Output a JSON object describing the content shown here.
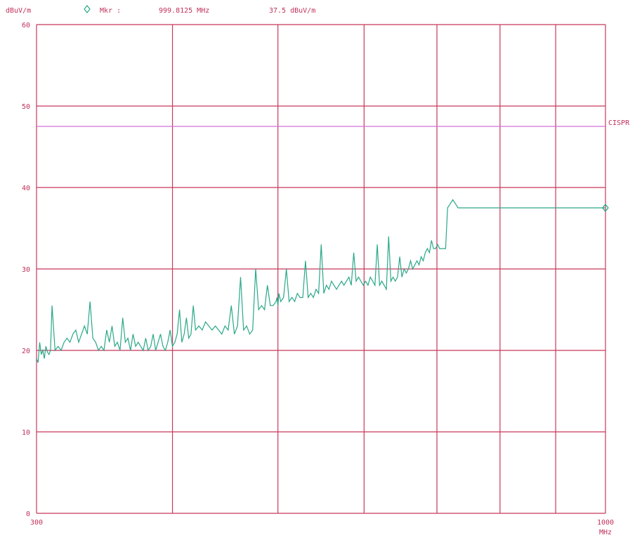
{
  "header": {
    "unit": "dBuV/m",
    "marker_label": "Mkr :",
    "marker_freq": "999.8125 MHz",
    "marker_level": "37.5 dBuV/m"
  },
  "limit_line": {
    "label": "CISPR",
    "value": 47.5,
    "color": "#d070d8"
  },
  "colors": {
    "grid": "#c8385a",
    "trace": "#2aa888",
    "text": "#c0305a"
  },
  "chart_data": {
    "type": "line",
    "title": "",
    "ylabel": "dBuV/m",
    "xlabel": "MHz",
    "x_scale": "log",
    "xlim": [
      300,
      1000
    ],
    "ylim": [
      0,
      60
    ],
    "x_tick_labels": [
      {
        "value": 300,
        "label": "300"
      },
      {
        "value": 1000,
        "label": "1000"
      }
    ],
    "x_unit_label": "MHz",
    "x_grid": [
      300,
      400,
      500,
      600,
      700,
      800,
      900,
      1000
    ],
    "y_ticks": [
      0,
      10,
      20,
      30,
      40,
      50,
      60
    ],
    "grid": true,
    "marker": {
      "x": 999.8125,
      "y": 37.5,
      "symbol": "diamond"
    },
    "series": [
      {
        "x": [
          300,
          301,
          302,
          303,
          304,
          305,
          306,
          307,
          308,
          309,
          310,
          312,
          314,
          316,
          318,
          320,
          322,
          324,
          326,
          328,
          330,
          332,
          334,
          336,
          338,
          340,
          342,
          344,
          346,
          348,
          350,
          352,
          354,
          356,
          358,
          360,
          362,
          364,
          366,
          368,
          370,
          372,
          374,
          376,
          378,
          380,
          382,
          384,
          386,
          388,
          390,
          392,
          394,
          396,
          398,
          400,
          402,
          404,
          406,
          408,
          410,
          412,
          414,
          416,
          418,
          420,
          423,
          426,
          429,
          432,
          435,
          438,
          441,
          444,
          447,
          450,
          453,
          456,
          459,
          462,
          465,
          468,
          471,
          474,
          477,
          480,
          483,
          486,
          489,
          492,
          495,
          498,
          499,
          500,
          501,
          503,
          506,
          509,
          512,
          515,
          518,
          521,
          524,
          527,
          530,
          533,
          536,
          539,
          542,
          545,
          548,
          551,
          554,
          557,
          560,
          563,
          566,
          569,
          572,
          575,
          578,
          581,
          584,
          587,
          590,
          593,
          596,
          599,
          602,
          605,
          608,
          611,
          614,
          617,
          620,
          623,
          626,
          629,
          632,
          635,
          638,
          641,
          644,
          647,
          650,
          653,
          656,
          659,
          662,
          665,
          668,
          671,
          674,
          677,
          680,
          683,
          686,
          689,
          692,
          695,
          698,
          701,
          704,
          707,
          710,
          713,
          716,
          720,
          724,
          728,
          732,
          736,
          740,
          744,
          748,
          752,
          756,
          760,
          764,
          768,
          772,
          776,
          780,
          784,
          788,
          792,
          796,
          800,
          804,
          808,
          812,
          816,
          820,
          824,
          828,
          832,
          836,
          840,
          844,
          848,
          852,
          856,
          860,
          864,
          868,
          872,
          876,
          880,
          884,
          888,
          892,
          896,
          900,
          904,
          908,
          912,
          916,
          920,
          924,
          928,
          932,
          936,
          940,
          944,
          948,
          952,
          956,
          960,
          964,
          968,
          972,
          976,
          980,
          984,
          988,
          992,
          995,
          997,
          999,
          999.8125
        ],
        "y": [
          19,
          18.5,
          21,
          19.5,
          20,
          19,
          20.5,
          19.8,
          19.5,
          20,
          25.5,
          20,
          20.5,
          20,
          21,
          21.5,
          21,
          22,
          22.5,
          21,
          22,
          23,
          22,
          26,
          21.5,
          21,
          20,
          20.5,
          20,
          22.5,
          21,
          23,
          20.5,
          21,
          20,
          24,
          21,
          21.5,
          20,
          22,
          20.5,
          21,
          20.5,
          20,
          21.5,
          20,
          20.5,
          22,
          20,
          21,
          22,
          20.5,
          20,
          21,
          22.5,
          20.5,
          21,
          22,
          25,
          21,
          22,
          24,
          21.5,
          22,
          25.5,
          22.5,
          23,
          22.5,
          23.5,
          23,
          22.5,
          23,
          22.5,
          22,
          23,
          22.5,
          25.5,
          22,
          23,
          29,
          22.5,
          23,
          22,
          22.5,
          30,
          25,
          25.5,
          25,
          28,
          25.5,
          25.5,
          26,
          26.5,
          25.5,
          27,
          26,
          26.5,
          30,
          26,
          26.5,
          26,
          27,
          26.5,
          26.5,
          31,
          26.5,
          27,
          26.5,
          27.5,
          27,
          33,
          27,
          28,
          27.5,
          28.5,
          28,
          27.5,
          28,
          28.5,
          28,
          28.5,
          29,
          28,
          32,
          28.5,
          29,
          28.5,
          28,
          28.5,
          28,
          29,
          28.5,
          28,
          33,
          28,
          28.5,
          28,
          27.5,
          34,
          28.5,
          29,
          28.5,
          29,
          31.5,
          29,
          30,
          29.5,
          30,
          31,
          30,
          30.5,
          31,
          30.5,
          31.5,
          31,
          32,
          32.5,
          32,
          33.5,
          32.5,
          32.5,
          33,
          32.5,
          32.5,
          32.5,
          32.5,
          37.5,
          38,
          38.5,
          38,
          37.5,
          37.5,
          37.5,
          37.5,
          37.5,
          37.5,
          37.5,
          37.5,
          37.5,
          37.5,
          37.5,
          37.5,
          37.5,
          37.5,
          37.5,
          37.5,
          37.5,
          37.5,
          37.5,
          37.5,
          37.5,
          37.5,
          37.5,
          37.5,
          37.5,
          37.5,
          37.5,
          37.5,
          37.5,
          37.5,
          37.5,
          37.5,
          37.5,
          37.5,
          37.5,
          37.5,
          37.5,
          37.5,
          37.5,
          37.5,
          37.5,
          37.5,
          37.5,
          37.5,
          37.5,
          37.5,
          37.5,
          37.5,
          37.5,
          37.5,
          37.5,
          37.5,
          37.5,
          37.5,
          37.5,
          37.5,
          37.5,
          37.5,
          37.5,
          37.5,
          37.5,
          37.5,
          37.5,
          37.5,
          37.5,
          37.5,
          37.5,
          37.5,
          37.5,
          37.5
        ]
      }
    ]
  }
}
